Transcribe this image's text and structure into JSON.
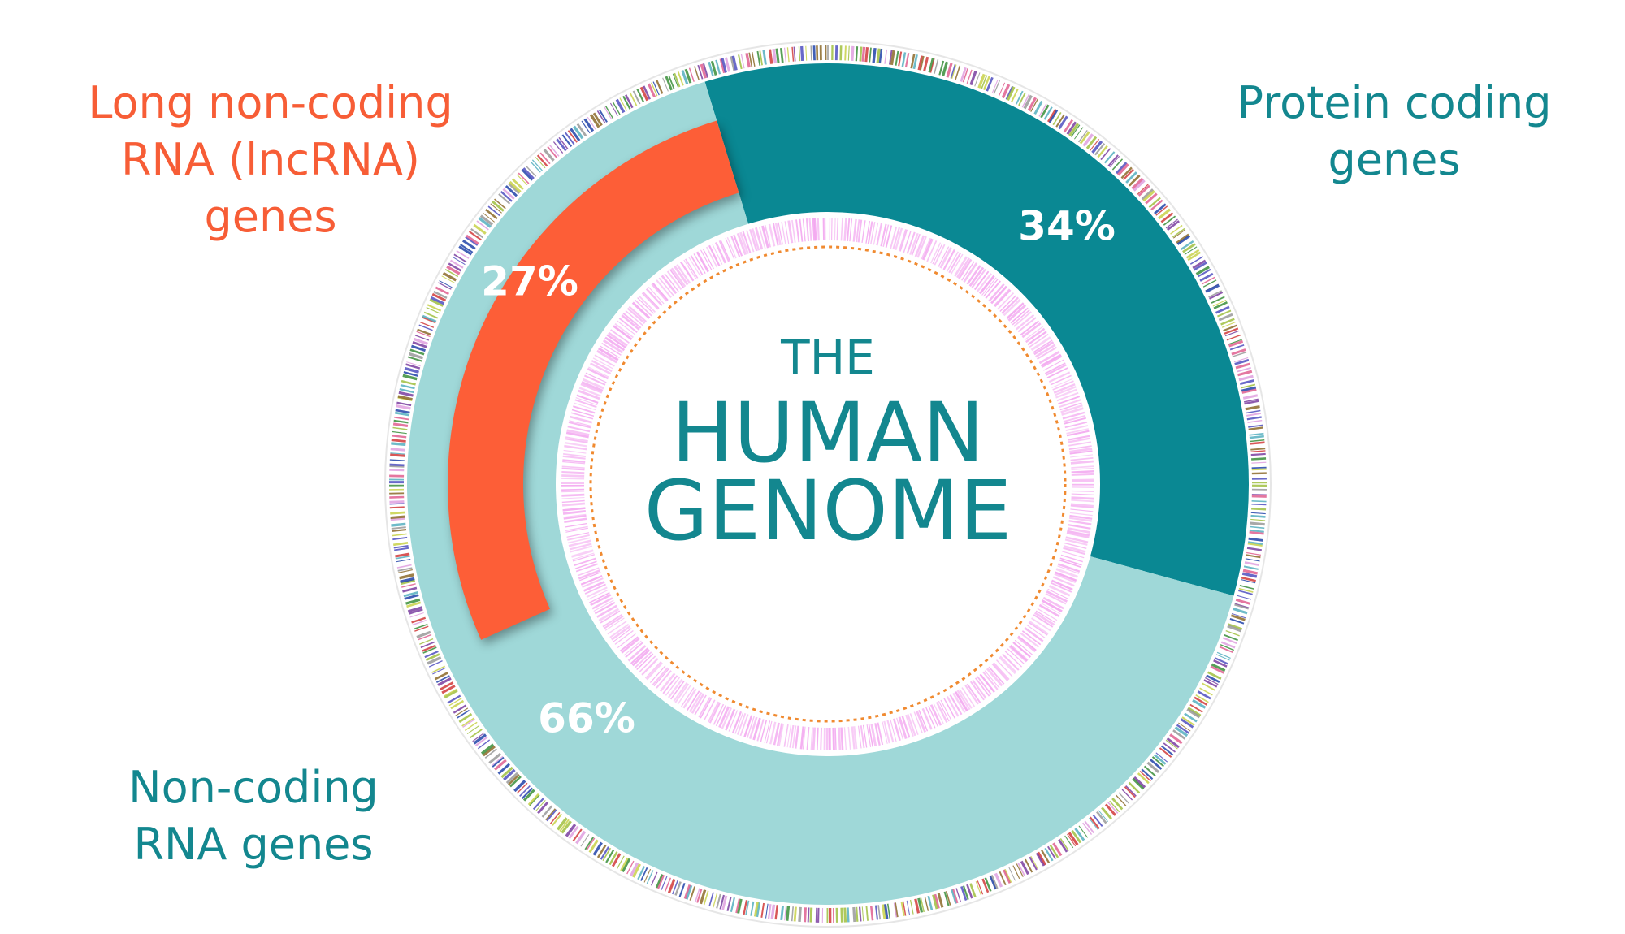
{
  "chart_data": {
    "type": "donut",
    "title_lines": [
      "THE",
      "HUMAN",
      "GENOME"
    ],
    "categories": [
      "Protein coding genes",
      "Non-coding RNA genes"
    ],
    "values": [
      34,
      66
    ],
    "value_labels": [
      "34%",
      "66%"
    ],
    "colors": [
      "#0a8893",
      "#9fd8d8"
    ],
    "overlay": {
      "name": "Long non-coding RNA (lncRNA) genes",
      "value": 27,
      "value_label": "27%",
      "color": "#fd5e37"
    }
  }
}
